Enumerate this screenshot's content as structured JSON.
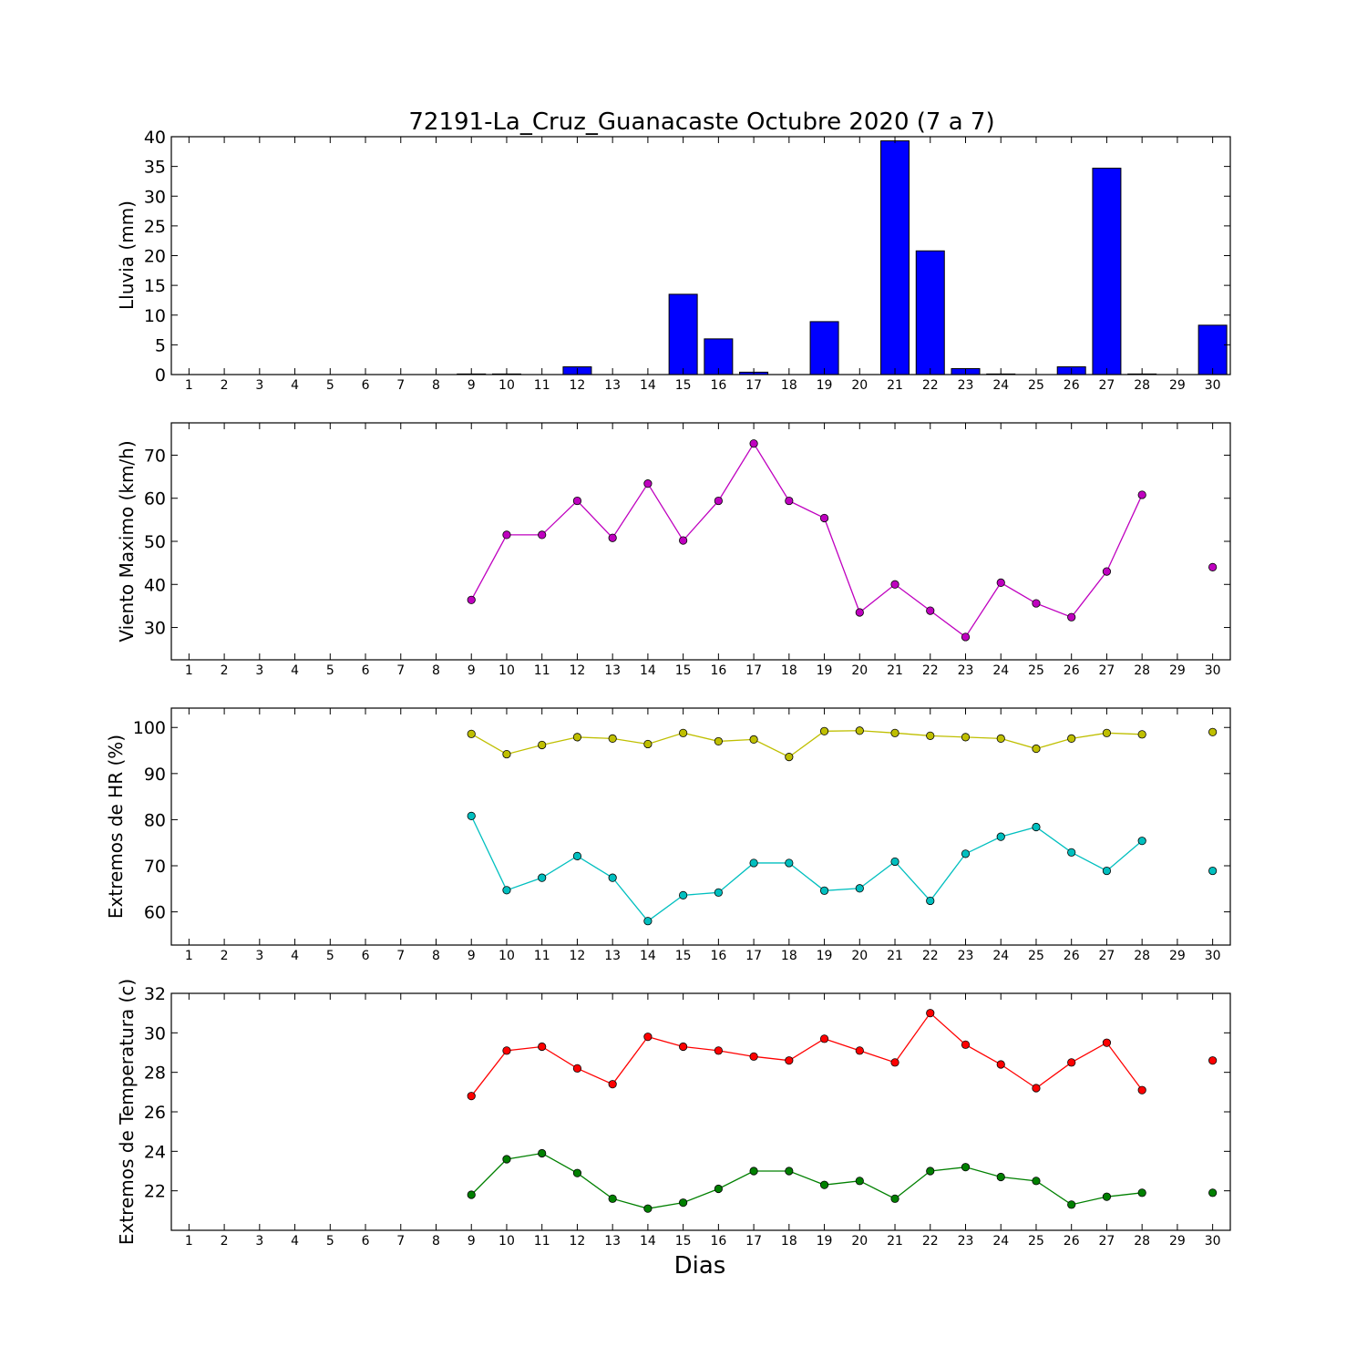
{
  "title": "72191-La_Cruz_Guanacaste Octubre 2020  (7 a 7)",
  "xlabel": "Dias",
  "chart_data": [
    {
      "type": "bar",
      "ylabel": "Lluvia (mm)",
      "categories": [
        1,
        2,
        3,
        4,
        5,
        6,
        7,
        8,
        9,
        10,
        11,
        12,
        13,
        14,
        15,
        16,
        17,
        18,
        19,
        20,
        21,
        22,
        23,
        24,
        25,
        26,
        27,
        28,
        29,
        30
      ],
      "ylim": [
        0,
        40
      ],
      "yticks": [
        0,
        5,
        10,
        15,
        20,
        25,
        30,
        35,
        40
      ],
      "series": [
        {
          "color": "#0000ff",
          "values": [
            null,
            null,
            null,
            null,
            null,
            null,
            null,
            null,
            0.1,
            0.1,
            null,
            1.3,
            null,
            null,
            13.5,
            6.0,
            0.4,
            null,
            8.9,
            null,
            39.3,
            20.8,
            1.0,
            0.1,
            null,
            1.3,
            34.7,
            0.1,
            null,
            8.3
          ]
        }
      ]
    },
    {
      "type": "line",
      "ylabel": "Viento Maximo (km/h)",
      "x": [
        1,
        2,
        3,
        4,
        5,
        6,
        7,
        8,
        9,
        10,
        11,
        12,
        13,
        14,
        15,
        16,
        17,
        18,
        19,
        20,
        21,
        22,
        23,
        24,
        25,
        26,
        27,
        28,
        29,
        30
      ],
      "ylim": [
        22.5,
        77.5
      ],
      "yticks": [
        30,
        40,
        50,
        60,
        70
      ],
      "series": [
        {
          "color": "#bf00bf",
          "values": [
            null,
            null,
            null,
            null,
            null,
            null,
            null,
            null,
            36.4,
            51.5,
            51.5,
            59.4,
            50.8,
            63.4,
            50.2,
            59.4,
            72.7,
            59.4,
            55.4,
            33.5,
            40.0,
            33.9,
            27.8,
            40.4,
            35.6,
            32.4,
            43.0,
            60.8,
            null,
            44.0
          ]
        }
      ]
    },
    {
      "type": "line",
      "ylabel": "Extremos de HR (%)",
      "x": [
        1,
        2,
        3,
        4,
        5,
        6,
        7,
        8,
        9,
        10,
        11,
        12,
        13,
        14,
        15,
        16,
        17,
        18,
        19,
        20,
        21,
        22,
        23,
        24,
        25,
        26,
        27,
        28,
        29,
        30
      ],
      "ylim": [
        52.8,
        104.2
      ],
      "yticks": [
        60,
        70,
        80,
        90,
        100
      ],
      "series": [
        {
          "color": "#bfbf00",
          "values": [
            null,
            null,
            null,
            null,
            null,
            null,
            null,
            null,
            98.6,
            94.2,
            96.2,
            97.9,
            97.6,
            96.4,
            98.8,
            97.0,
            97.4,
            93.6,
            99.2,
            99.3,
            98.8,
            98.2,
            97.9,
            97.6,
            95.4,
            97.6,
            98.8,
            98.5,
            null,
            99.0
          ]
        },
        {
          "color": "#00bfbf",
          "values": [
            null,
            null,
            null,
            null,
            null,
            null,
            null,
            null,
            80.8,
            64.7,
            67.4,
            72.1,
            67.4,
            58.0,
            63.6,
            64.2,
            70.6,
            70.6,
            64.6,
            65.1,
            70.9,
            62.4,
            72.6,
            76.3,
            78.4,
            72.9,
            68.9,
            75.4,
            null,
            68.9
          ]
        }
      ]
    },
    {
      "type": "line",
      "ylabel": "Extremos de Temperatura (c)",
      "x": [
        1,
        2,
        3,
        4,
        5,
        6,
        7,
        8,
        9,
        10,
        11,
        12,
        13,
        14,
        15,
        16,
        17,
        18,
        19,
        20,
        21,
        22,
        23,
        24,
        25,
        26,
        27,
        28,
        29,
        30
      ],
      "ylim": [
        20.0,
        32.0
      ],
      "yticks": [
        22,
        24,
        26,
        28,
        30,
        32
      ],
      "series": [
        {
          "color": "#ff0000",
          "values": [
            null,
            null,
            null,
            null,
            null,
            null,
            null,
            null,
            26.8,
            29.1,
            29.3,
            28.2,
            27.4,
            29.8,
            29.3,
            29.1,
            28.8,
            28.6,
            29.7,
            29.1,
            28.5,
            31.0,
            29.4,
            28.4,
            27.2,
            28.5,
            29.5,
            27.1,
            null,
            28.6
          ]
        },
        {
          "color": "#008000",
          "values": [
            null,
            null,
            null,
            null,
            null,
            null,
            null,
            null,
            21.8,
            23.6,
            23.9,
            22.9,
            21.6,
            21.1,
            21.4,
            22.1,
            23.0,
            23.0,
            22.3,
            22.5,
            21.6,
            23.0,
            23.2,
            22.7,
            22.5,
            21.3,
            21.7,
            21.9,
            null,
            21.9
          ]
        }
      ]
    }
  ]
}
